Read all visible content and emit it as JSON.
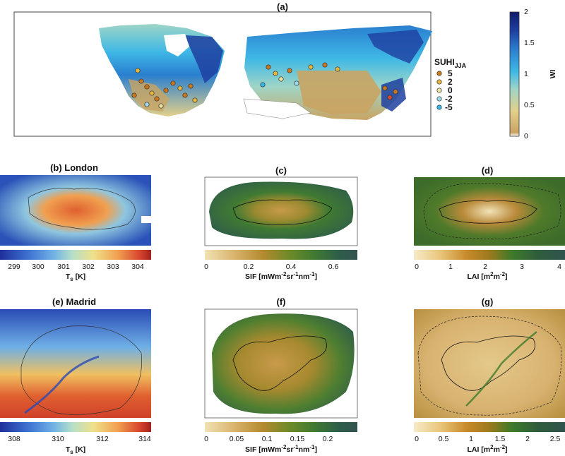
{
  "colors": {
    "wi_scale": [
      "#ffffff",
      "#c9a463",
      "#e3d08a",
      "#9fd5c6",
      "#3fb8e6",
      "#2a7fcf",
      "#1e3fa0",
      "#101a6e"
    ],
    "ts_scale": [
      "#1f2e9a",
      "#3d6fd0",
      "#6fb0e6",
      "#b6e0c8",
      "#f0e08a",
      "#f0a050",
      "#d9472f",
      "#a4201c"
    ],
    "sif_scale": [
      "#f1e2b4",
      "#d8b26a",
      "#b48a30",
      "#6f8a28",
      "#3f7a32",
      "#2f5d4a",
      "#31534f"
    ],
    "lai_scale": [
      "#f7ebc8",
      "#e8c478",
      "#c88a2a",
      "#9c7a1e",
      "#3e7a2a",
      "#2f5d3c",
      "#31534f"
    ],
    "suhi": [
      "#c8781e",
      "#e6b73c",
      "#e9df9e",
      "#9fd7e8",
      "#36b5e4"
    ]
  },
  "chart_data": [
    {
      "id": "a",
      "type": "heatmap",
      "title": "(a)",
      "colorbar": {
        "label": "WI",
        "ticks": [
          "0",
          "0.5",
          "1",
          "1.5",
          "2"
        ],
        "range": [
          0,
          2
        ]
      },
      "legend": {
        "title": "SUHI",
        "title_sub": "JJA",
        "placement": "right",
        "entries": [
          {
            "label": "5",
            "value": 5
          },
          {
            "label": "2",
            "value": 2
          },
          {
            "label": "0",
            "value": 0
          },
          {
            "label": "-2",
            "value": -2
          },
          {
            "label": "-5",
            "value": -5
          }
        ]
      }
    },
    {
      "id": "b",
      "type": "heatmap",
      "title": "(b) London",
      "colorbar": {
        "label": "T",
        "label_sub": "s",
        "label_unit": " [K]",
        "ticks": [
          "299",
          "300",
          "301",
          "302",
          "303",
          "304"
        ],
        "range": [
          298.5,
          304.5
        ]
      }
    },
    {
      "id": "c",
      "type": "heatmap",
      "title": "(c)",
      "colorbar": {
        "label": "SIF [mWm",
        "label_exp1": "-2",
        "label_mid": "sr",
        "label_exp2": "-1",
        "label_mid2": "nm",
        "label_exp3": "-1",
        "label_end": "]",
        "ticks": [
          "0",
          "0.2",
          "0.4",
          "0.6"
        ],
        "range": [
          0,
          0.72
        ]
      }
    },
    {
      "id": "d",
      "type": "heatmap",
      "title": "(d)",
      "colorbar": {
        "label": "LAI [m",
        "label_exp1": "2",
        "label_mid": "m",
        "label_exp2": "-2",
        "label_end": "]",
        "ticks": [
          "0",
          "1",
          "2",
          "3",
          "4"
        ],
        "range": [
          0,
          4
        ]
      }
    },
    {
      "id": "e",
      "type": "heatmap",
      "title": "(e) Madrid",
      "colorbar": {
        "label": "T",
        "label_sub": "s",
        "label_unit": " [K]",
        "ticks": [
          "308",
          "310",
          "312",
          "314"
        ],
        "range": [
          307,
          314
        ]
      }
    },
    {
      "id": "f",
      "type": "heatmap",
      "title": "(f)",
      "colorbar": {
        "label": "SIF [mWm",
        "label_exp1": "-2",
        "label_mid": "sr",
        "label_exp2": "-1",
        "label_mid2": "nm",
        "label_exp3": "-1",
        "label_end": "]",
        "ticks": [
          "0",
          "0.05",
          "0.1",
          "0.15",
          "0.2"
        ],
        "range": [
          0,
          0.25
        ]
      }
    },
    {
      "id": "g",
      "type": "heatmap",
      "title": "(g)",
      "colorbar": {
        "label": "LAI [m",
        "label_exp1": "2",
        "label_mid": "m",
        "label_exp2": "-2",
        "label_end": "]",
        "ticks": [
          "0",
          "0.5",
          "1",
          "1.5",
          "2",
          "2.5"
        ],
        "range": [
          0,
          2.7
        ]
      }
    }
  ]
}
